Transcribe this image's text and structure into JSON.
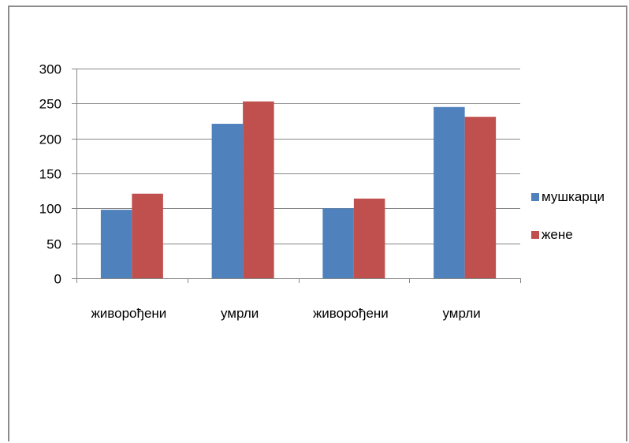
{
  "chart_data": {
    "type": "bar",
    "categories": [
      "живорођени",
      "умрли",
      "живорођени",
      "умрли"
    ],
    "series": [
      {
        "name": "мушкарци",
        "values": [
          98,
          221,
          100,
          245
        ],
        "color": "#4f81bd"
      },
      {
        "name": "жене",
        "values": [
          121,
          253,
          114,
          231
        ],
        "color": "#c0504d"
      }
    ],
    "ylim": [
      0,
      300
    ],
    "yticks": [
      0,
      50,
      100,
      150,
      200,
      250,
      300
    ],
    "grid": true,
    "legend": "right"
  }
}
